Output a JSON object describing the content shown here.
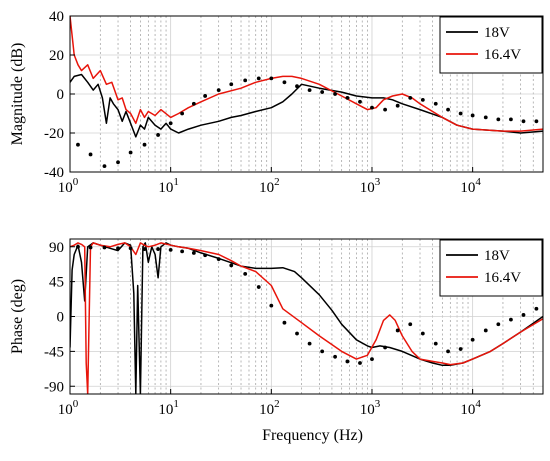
{
  "chart_data": [
    {
      "type": "line",
      "ylabel": "Magnitude (dB)",
      "xlabel": "",
      "xscale": "log",
      "xlim": [
        1,
        50000
      ],
      "ylim": [
        -40,
        40
      ],
      "yticks": [
        -40,
        -20,
        0,
        20,
        40
      ],
      "xtick_values": [
        1,
        10,
        100,
        1000,
        10000
      ],
      "xtick_labels": [
        {
          "base": "10",
          "exp": "0"
        },
        {
          "base": "10",
          "exp": "1"
        },
        {
          "base": "10",
          "exp": "2"
        },
        {
          "base": "10",
          "exp": "3"
        },
        {
          "base": "10",
          "exp": "4"
        }
      ],
      "grid": true,
      "legend_position": "top-right",
      "series": [
        {
          "name": "18V",
          "color": "#000000",
          "style": "line",
          "x": [
            1,
            1.1,
            1.3,
            1.5,
            1.7,
            1.9,
            2.1,
            2.3,
            2.5,
            2.7,
            3.0,
            3.3,
            3.6,
            4.0,
            4.5,
            5.0,
            5.5,
            6.0,
            7.0,
            8.0,
            9.0,
            10,
            12,
            15,
            20,
            30,
            40,
            50,
            70,
            100,
            130,
            160,
            200,
            300,
            500,
            700,
            1000,
            1300,
            1600,
            2000,
            3000,
            5000,
            7000,
            10000,
            20000,
            30000,
            50000
          ],
          "y": [
            6,
            9,
            10,
            6,
            2,
            5,
            -2,
            -15,
            -2,
            -5,
            -8,
            -14,
            -9,
            -15,
            -22,
            -16,
            -18,
            -12,
            -16,
            -18,
            -15,
            -18,
            -20,
            -18,
            -16,
            -14,
            -12,
            -11,
            -9,
            -7,
            -4,
            0,
            5,
            3,
            1,
            -1,
            -2,
            -2,
            -3,
            -5,
            -8,
            -12,
            -16,
            -18,
            -19,
            -20,
            -19
          ]
        },
        {
          "name": "16.4V",
          "color": "#e8150b",
          "style": "line",
          "x": [
            1,
            1.1,
            1.2,
            1.3,
            1.5,
            1.7,
            2.0,
            2.3,
            2.6,
            3.0,
            3.3,
            3.6,
            4.0,
            4.5,
            5.0,
            5.5,
            6.0,
            7.0,
            8.0,
            10,
            12,
            15,
            20,
            30,
            50,
            70,
            100,
            130,
            160,
            200,
            300,
            500,
            700,
            900,
            1100,
            1300,
            1600,
            2000,
            2500,
            3000,
            4000,
            5000,
            7000,
            10000,
            20000,
            30000,
            50000
          ],
          "y": [
            40,
            20,
            15,
            12,
            15,
            8,
            12,
            5,
            6,
            -3,
            -2,
            -8,
            -10,
            -15,
            -8,
            -12,
            -9,
            -11,
            -8,
            -12,
            -10,
            -7,
            -4,
            0,
            3,
            6,
            8,
            9,
            9,
            8,
            5,
            -1,
            -5,
            -8,
            -7,
            -3,
            -1,
            0,
            -2,
            -5,
            -9,
            -12,
            -16,
            -18,
            -19,
            -19,
            -18
          ]
        },
        {
          "name": "",
          "color": "#000000",
          "style": "dots",
          "x": [
            1.2,
            1.6,
            2.2,
            3.0,
            4.0,
            5.5,
            7.5,
            10,
            13,
            17,
            22,
            30,
            40,
            55,
            75,
            100,
            135,
            180,
            240,
            320,
            430,
            570,
            760,
            1000,
            1350,
            1800,
            2400,
            3200,
            4300,
            5700,
            7600,
            10000,
            13500,
            18000,
            24000,
            32000,
            43000
          ],
          "y": [
            -26,
            -31,
            -37,
            -35,
            -30,
            -26,
            -21,
            -15,
            -10,
            -5,
            -1,
            2,
            5,
            7,
            8,
            8,
            6,
            4,
            2,
            1,
            0,
            -2,
            -4,
            -7,
            -8,
            -6,
            -2,
            -3,
            -5,
            -8,
            -10,
            -11,
            -12,
            -13,
            -13,
            -14,
            -14
          ]
        }
      ]
    },
    {
      "type": "line",
      "ylabel": "Phase (deg)",
      "xlabel": "Frequency (Hz)",
      "xscale": "log",
      "xlim": [
        1,
        50000
      ],
      "ylim": [
        -100,
        100
      ],
      "yticks": [
        -90,
        -45,
        0,
        45,
        90
      ],
      "xtick_values": [
        1,
        10,
        100,
        1000,
        10000
      ],
      "xtick_labels": [
        {
          "base": "10",
          "exp": "0"
        },
        {
          "base": "10",
          "exp": "1"
        },
        {
          "base": "10",
          "exp": "2"
        },
        {
          "base": "10",
          "exp": "3"
        },
        {
          "base": "10",
          "exp": "4"
        }
      ],
      "grid": true,
      "legend_position": "top-right",
      "series": [
        {
          "name": "18V",
          "color": "#000000",
          "style": "line",
          "x": [
            1,
            1.05,
            1.1,
            1.2,
            1.3,
            1.4,
            1.5,
            1.7,
            2.0,
            2.5,
            3.0,
            3.5,
            4.0,
            4.3,
            4.5,
            4.7,
            5.0,
            5.3,
            5.6,
            6.0,
            6.5,
            7.0,
            7.5,
            8.0,
            9.0,
            10,
            12,
            15,
            20,
            30,
            50,
            70,
            100,
            130,
            170,
            200,
            300,
            400,
            500,
            700,
            900,
            1000,
            1200,
            1500,
            2000,
            3000,
            4000,
            5000,
            6000,
            8000,
            10000,
            15000,
            20000,
            30000,
            50000
          ],
          "y": [
            -40,
            60,
            80,
            92,
            70,
            20,
            90,
            95,
            92,
            88,
            85,
            95,
            92,
            30,
            -100,
            40,
            -100,
            90,
            95,
            70,
            90,
            80,
            50,
            90,
            95,
            92,
            90,
            88,
            82,
            75,
            65,
            62,
            62,
            63,
            58,
            50,
            28,
            8,
            -10,
            -30,
            -38,
            -40,
            -38,
            -40,
            -45,
            -55,
            -60,
            -63,
            -63,
            -60,
            -55,
            -45,
            -35,
            -20,
            0
          ]
        },
        {
          "name": "16.4V",
          "color": "#e8150b",
          "style": "line",
          "x": [
            1,
            1.1,
            1.2,
            1.3,
            1.4,
            1.45,
            1.5,
            1.6,
            1.7,
            2.0,
            2.5,
            3.0,
            3.5,
            4.0,
            4.5,
            5.0,
            5.5,
            6.0,
            7.0,
            8.0,
            10,
            12,
            15,
            20,
            30,
            40,
            50,
            70,
            100,
            130,
            200,
            300,
            500,
            700,
            900,
            1100,
            1300,
            1500,
            1700,
            2000,
            2500,
            3000,
            4000,
            5000,
            6000,
            8000,
            10000,
            15000,
            20000,
            30000,
            50000
          ],
          "y": [
            90,
            92,
            95,
            93,
            90,
            -60,
            -100,
            90,
            95,
            92,
            90,
            93,
            95,
            90,
            80,
            95,
            92,
            90,
            92,
            95,
            92,
            90,
            88,
            85,
            80,
            72,
            65,
            58,
            40,
            10,
            -8,
            -25,
            -45,
            -55,
            -50,
            -30,
            -5,
            2,
            -5,
            -25,
            -45,
            -55,
            -58,
            -60,
            -62,
            -60,
            -55,
            -45,
            -35,
            -20,
            -3
          ]
        },
        {
          "name": "",
          "color": "#000000",
          "style": "dots",
          "x": [
            1.2,
            1.6,
            2.2,
            3.0,
            4.0,
            5.5,
            7.5,
            10,
            13,
            17,
            22,
            30,
            40,
            55,
            75,
            100,
            135,
            180,
            240,
            320,
            430,
            570,
            760,
            1000,
            1350,
            1800,
            2400,
            3200,
            4300,
            5700,
            7600,
            10000,
            13500,
            18000,
            24000,
            32000,
            43000
          ],
          "y": [
            90,
            89,
            89,
            88,
            88,
            87,
            87,
            86,
            84,
            82,
            79,
            74,
            66,
            55,
            38,
            14,
            -8,
            -22,
            -35,
            -45,
            -52,
            -58,
            -60,
            -55,
            -40,
            -18,
            -10,
            -22,
            -35,
            -45,
            -42,
            -30,
            -18,
            -10,
            -4,
            2,
            10
          ]
        }
      ]
    }
  ]
}
